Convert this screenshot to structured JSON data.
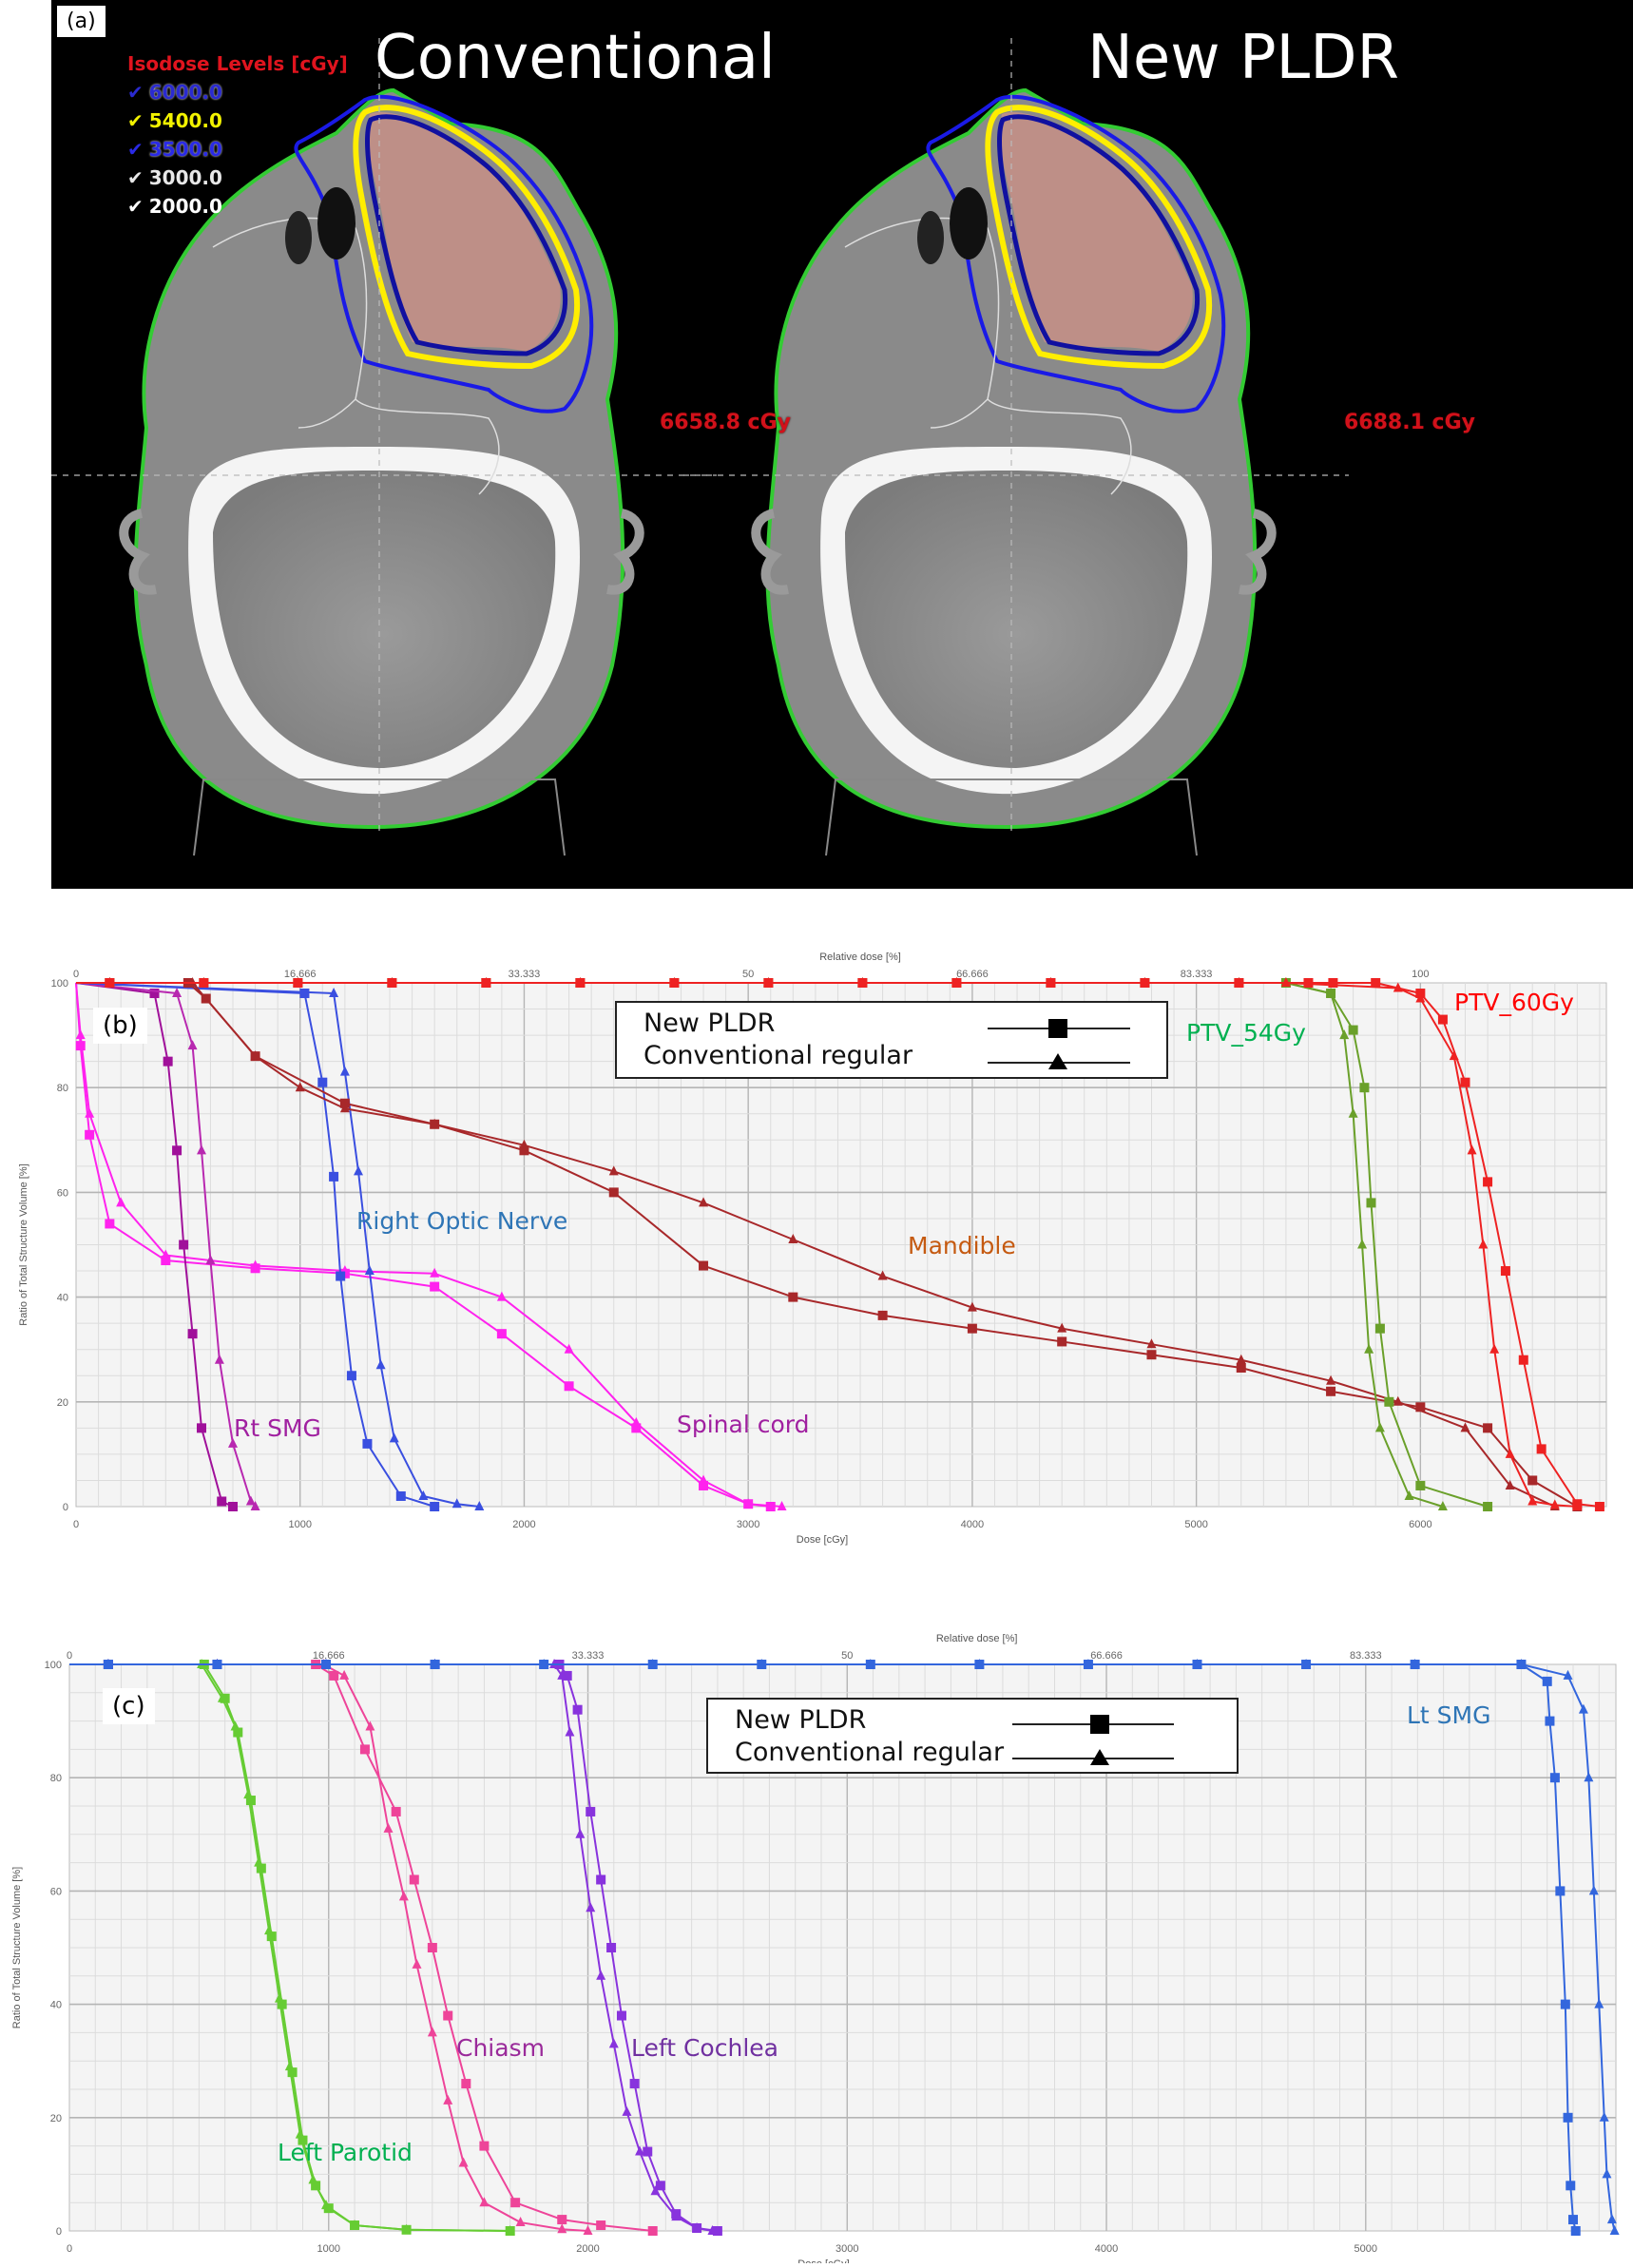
{
  "panel_a": {
    "tag": "(a)",
    "left_title": "Conventional",
    "right_title": "New PLDR",
    "isodose_legend": {
      "header": "Isodose Levels [cGy]",
      "levels": [
        {
          "value": "6000.0",
          "color": "#2a2ad0"
        },
        {
          "value": "5400.0",
          "color": "#f2f200"
        },
        {
          "value": "3500.0",
          "color": "#2a2ae6"
        },
        {
          "value": "3000.0",
          "color": "#e8e8e8"
        },
        {
          "value": "2000.0",
          "color": "#ffffff"
        }
      ]
    },
    "left_max_dose": "6658.8 cGy",
    "right_max_dose": "6688.1 cGy"
  },
  "chart_data": [
    {
      "panel": "(b)",
      "type": "line",
      "title": "",
      "xlabel": "Dose [cGy]",
      "ylabel": "Ratio of Total Structure Volume [%]",
      "x2label": "Relative dose [%]",
      "xlim": [
        0,
        6830
      ],
      "ylim": [
        0,
        100
      ],
      "xticks": [
        0,
        1000,
        2000,
        3000,
        4000,
        5000,
        6000
      ],
      "yticks": [
        0,
        20,
        40,
        60,
        80,
        100
      ],
      "x2ticks": [
        "0",
        "16.666",
        "33.333",
        "50",
        "66.666",
        "83.333",
        "100"
      ],
      "grid": true,
      "legend": [
        {
          "label": "New PLDR",
          "marker": "square"
        },
        {
          "label": "Conventional regular",
          "marker": "triangle"
        }
      ],
      "series": [
        {
          "name": "Spinal cord",
          "plan": "New PLDR",
          "color": "#ff22ee",
          "x": [
            0,
            20,
            60,
            150,
            400,
            800,
            1200,
            1600,
            1900,
            2200,
            2500,
            2800,
            3000,
            3100
          ],
          "y": [
            100,
            88,
            71,
            54,
            47,
            45.5,
            44.5,
            42,
            33,
            23,
            15,
            4,
            0.5,
            0
          ]
        },
        {
          "name": "Spinal cord",
          "plan": "Conventional regular",
          "color": "#ff22ee",
          "x": [
            0,
            20,
            60,
            200,
            400,
            800,
            1200,
            1600,
            1900,
            2200,
            2500,
            2800,
            3000,
            3150
          ],
          "y": [
            100,
            90,
            75,
            58,
            48,
            46,
            45,
            44.5,
            40,
            30,
            16,
            5,
            0.5,
            0
          ]
        },
        {
          "name": "Rt SMG",
          "plan": "New PLDR",
          "color": "#a0109a",
          "x": [
            0,
            350,
            410,
            450,
            480,
            520,
            560,
            650,
            700
          ],
          "y": [
            100,
            98,
            85,
            68,
            50,
            33,
            15,
            1,
            0
          ]
        },
        {
          "name": "Rt SMG",
          "plan": "Conventional regular",
          "color": "#b828b0",
          "x": [
            0,
            450,
            520,
            560,
            600,
            640,
            700,
            780,
            800
          ],
          "y": [
            100,
            98,
            88,
            68,
            47,
            28,
            12,
            1,
            0
          ]
        },
        {
          "name": "Right Optic Nerve",
          "plan": "New PLDR",
          "color": "#3a4fe0",
          "x": [
            0,
            1020,
            1100,
            1150,
            1180,
            1230,
            1300,
            1450,
            1600
          ],
          "y": [
            100,
            98,
            81,
            63,
            44,
            25,
            12,
            2,
            0
          ]
        },
        {
          "name": "Right Optic Nerve",
          "plan": "Conventional regular",
          "color": "#3a4fe0",
          "x": [
            0,
            1150,
            1200,
            1260,
            1310,
            1360,
            1420,
            1550,
            1700,
            1800
          ],
          "y": [
            100,
            98,
            83,
            64,
            45,
            27,
            13,
            2,
            0.5,
            0
          ]
        },
        {
          "name": "Mandible",
          "plan": "New PLDR",
          "color": "#a8282a",
          "x": [
            0,
            500,
            580,
            800,
            1200,
            1600,
            2000,
            2400,
            2800,
            3200,
            3600,
            4000,
            4400,
            4800,
            5200,
            5600,
            6000,
            6300,
            6500,
            6700
          ],
          "y": [
            100,
            100,
            97,
            86,
            77,
            73,
            68,
            60,
            46,
            40,
            36.5,
            34,
            31.5,
            29,
            26.5,
            22,
            19,
            15,
            5,
            0
          ]
        },
        {
          "name": "Mandible",
          "plan": "Conventional regular",
          "color": "#a8282a",
          "x": [
            0,
            520,
            800,
            1000,
            1200,
            1600,
            2000,
            2400,
            2800,
            3200,
            3600,
            4000,
            4400,
            4800,
            5200,
            5600,
            5900,
            6200,
            6400,
            6600
          ],
          "y": [
            100,
            100,
            86,
            80,
            76,
            73,
            69,
            64,
            58,
            51,
            44,
            38,
            34,
            31,
            28,
            24,
            20,
            15,
            4,
            0
          ]
        },
        {
          "name": "PTV_54Gy",
          "plan": "New PLDR",
          "color": "#6aa02a",
          "x": [
            0,
            5400,
            5600,
            5700,
            5750,
            5780,
            5820,
            5860,
            6000,
            6300
          ],
          "y": [
            100,
            100,
            98,
            91,
            80,
            58,
            34,
            20,
            4,
            0
          ]
        },
        {
          "name": "PTV_54Gy",
          "plan": "Conventional regular",
          "color": "#6aa02a",
          "x": [
            0,
            5400,
            5600,
            5660,
            5700,
            5740,
            5770,
            5820,
            5950,
            6100
          ],
          "y": [
            100,
            100,
            98,
            90,
            75,
            50,
            30,
            15,
            2,
            0
          ]
        },
        {
          "name": "PTV_60Gy",
          "plan": "New PLDR",
          "color": "#ee2222",
          "x": [
            0,
            5500,
            5800,
            6000,
            6100,
            6200,
            6300,
            6380,
            6460,
            6540,
            6700,
            6800
          ],
          "y": [
            100,
            100,
            100,
            98,
            93,
            81,
            62,
            45,
            28,
            11,
            0.5,
            0
          ]
        },
        {
          "name": "PTV_60Gy",
          "plan": "Conventional regular",
          "color": "#ee2222",
          "x": [
            0,
            5400,
            5900,
            6000,
            6150,
            6230,
            6280,
            6330,
            6400,
            6500,
            6600,
            6700
          ],
          "y": [
            100,
            100,
            99,
            97,
            86,
            68,
            50,
            30,
            10,
            1,
            0.3,
            0
          ]
        }
      ],
      "annotations": [
        {
          "text": "Right Optic Nerve",
          "color": "#2e75b6"
        },
        {
          "text": "Mandible",
          "color": "#c55a11"
        },
        {
          "text": "PTV_54Gy",
          "color": "#00b050"
        },
        {
          "text": "PTV_60Gy",
          "color": "#ff0000"
        },
        {
          "text": "Rt SMG",
          "color": "#a020a0"
        },
        {
          "text": "Spinal cord",
          "color": "#a020a0"
        }
      ]
    },
    {
      "panel": "(c)",
      "type": "line",
      "title": "",
      "xlabel": "Dose [cGy]",
      "ylabel": "Ratio of Total Structure Volume [%]",
      "x2label": "Relative dose [%]",
      "xlim": [
        0,
        5965
      ],
      "ylim": [
        0,
        100
      ],
      "xticks": [
        0,
        1000,
        2000,
        3000,
        4000,
        5000
      ],
      "yticks": [
        0,
        20,
        40,
        60,
        80,
        100
      ],
      "x2ticks": [
        "0",
        "16.666",
        "33.333",
        "50",
        "66.666",
        "83.333"
      ],
      "grid": true,
      "legend": [
        {
          "label": "New PLDR",
          "marker": "square"
        },
        {
          "label": "Conventional regular",
          "marker": "triangle"
        }
      ],
      "series": [
        {
          "name": "Left Parotid",
          "plan": "New PLDR",
          "color": "#66cc33",
          "x": [
            0,
            520,
            600,
            650,
            700,
            740,
            780,
            820,
            860,
            900,
            950,
            1000,
            1100,
            1300,
            1700
          ],
          "y": [
            100,
            100,
            94,
            88,
            76,
            64,
            52,
            40,
            28,
            16,
            8,
            4,
            1,
            0.2,
            0
          ]
        },
        {
          "name": "Left Parotid",
          "plan": "Conventional regular",
          "color": "#66cc33",
          "x": [
            0,
            510,
            590,
            640,
            690,
            730,
            770,
            810,
            850,
            890,
            940,
            990,
            1100,
            1300,
            1700
          ],
          "y": [
            100,
            100,
            94,
            89,
            77,
            65,
            53,
            41,
            29,
            17,
            9,
            4.5,
            1,
            0.2,
            0
          ]
        },
        {
          "name": "Chiasm",
          "plan": "New PLDR",
          "color": "#ee4499",
          "x": [
            0,
            950,
            1020,
            1140,
            1260,
            1330,
            1400,
            1460,
            1530,
            1600,
            1720,
            1900,
            2050,
            2250
          ],
          "y": [
            100,
            100,
            98,
            85,
            74,
            62,
            50,
            38,
            26,
            15,
            5,
            2,
            1,
            0
          ]
        },
        {
          "name": "Chiasm",
          "plan": "Conventional regular",
          "color": "#ee4499",
          "x": [
            0,
            980,
            1060,
            1160,
            1230,
            1290,
            1340,
            1400,
            1460,
            1520,
            1600,
            1740,
            1900,
            2000
          ],
          "y": [
            100,
            100,
            98,
            89,
            71,
            59,
            47,
            35,
            23,
            12,
            5,
            1.5,
            0.3,
            0
          ]
        },
        {
          "name": "Left Cochlea",
          "plan": "New PLDR",
          "color": "#8833dd",
          "x": [
            0,
            1890,
            1920,
            1960,
            2010,
            2050,
            2090,
            2130,
            2180,
            2230,
            2280,
            2340,
            2420,
            2500
          ],
          "y": [
            100,
            100,
            98,
            92,
            74,
            62,
            50,
            38,
            26,
            14,
            8,
            3,
            0.5,
            0
          ]
        },
        {
          "name": "Left Cochlea",
          "plan": "Conventional regular",
          "color": "#8833dd",
          "x": [
            0,
            1870,
            1900,
            1930,
            1970,
            2010,
            2050,
            2100,
            2150,
            2200,
            2260,
            2340,
            2420,
            2480
          ],
          "y": [
            100,
            100,
            98,
            88,
            70,
            57,
            45,
            33,
            21,
            14,
            7,
            2.5,
            0.5,
            0
          ]
        },
        {
          "name": "Lt SMG",
          "plan": "New PLDR",
          "color": "#3366dd",
          "x": [
            0,
            5600,
            5700,
            5710,
            5730,
            5750,
            5770,
            5780,
            5790,
            5800,
            5810
          ],
          "y": [
            100,
            100,
            97,
            90,
            80,
            60,
            40,
            20,
            8,
            2,
            0
          ]
        },
        {
          "name": "Lt SMG",
          "plan": "Conventional regular",
          "color": "#3366dd",
          "x": [
            0,
            5600,
            5780,
            5840,
            5860,
            5880,
            5900,
            5920,
            5930,
            5950,
            5960
          ],
          "y": [
            100,
            100,
            98,
            92,
            80,
            60,
            40,
            20,
            10,
            2,
            0
          ]
        }
      ],
      "annotations": [
        {
          "text": "Lt SMG",
          "color": "#2e75b6"
        },
        {
          "text": "Chiasm",
          "color": "#9a2a9a"
        },
        {
          "text": "Left Cochlea",
          "color": "#7030a0"
        },
        {
          "text": "Left Parotid",
          "color": "#00b050"
        }
      ]
    }
  ]
}
